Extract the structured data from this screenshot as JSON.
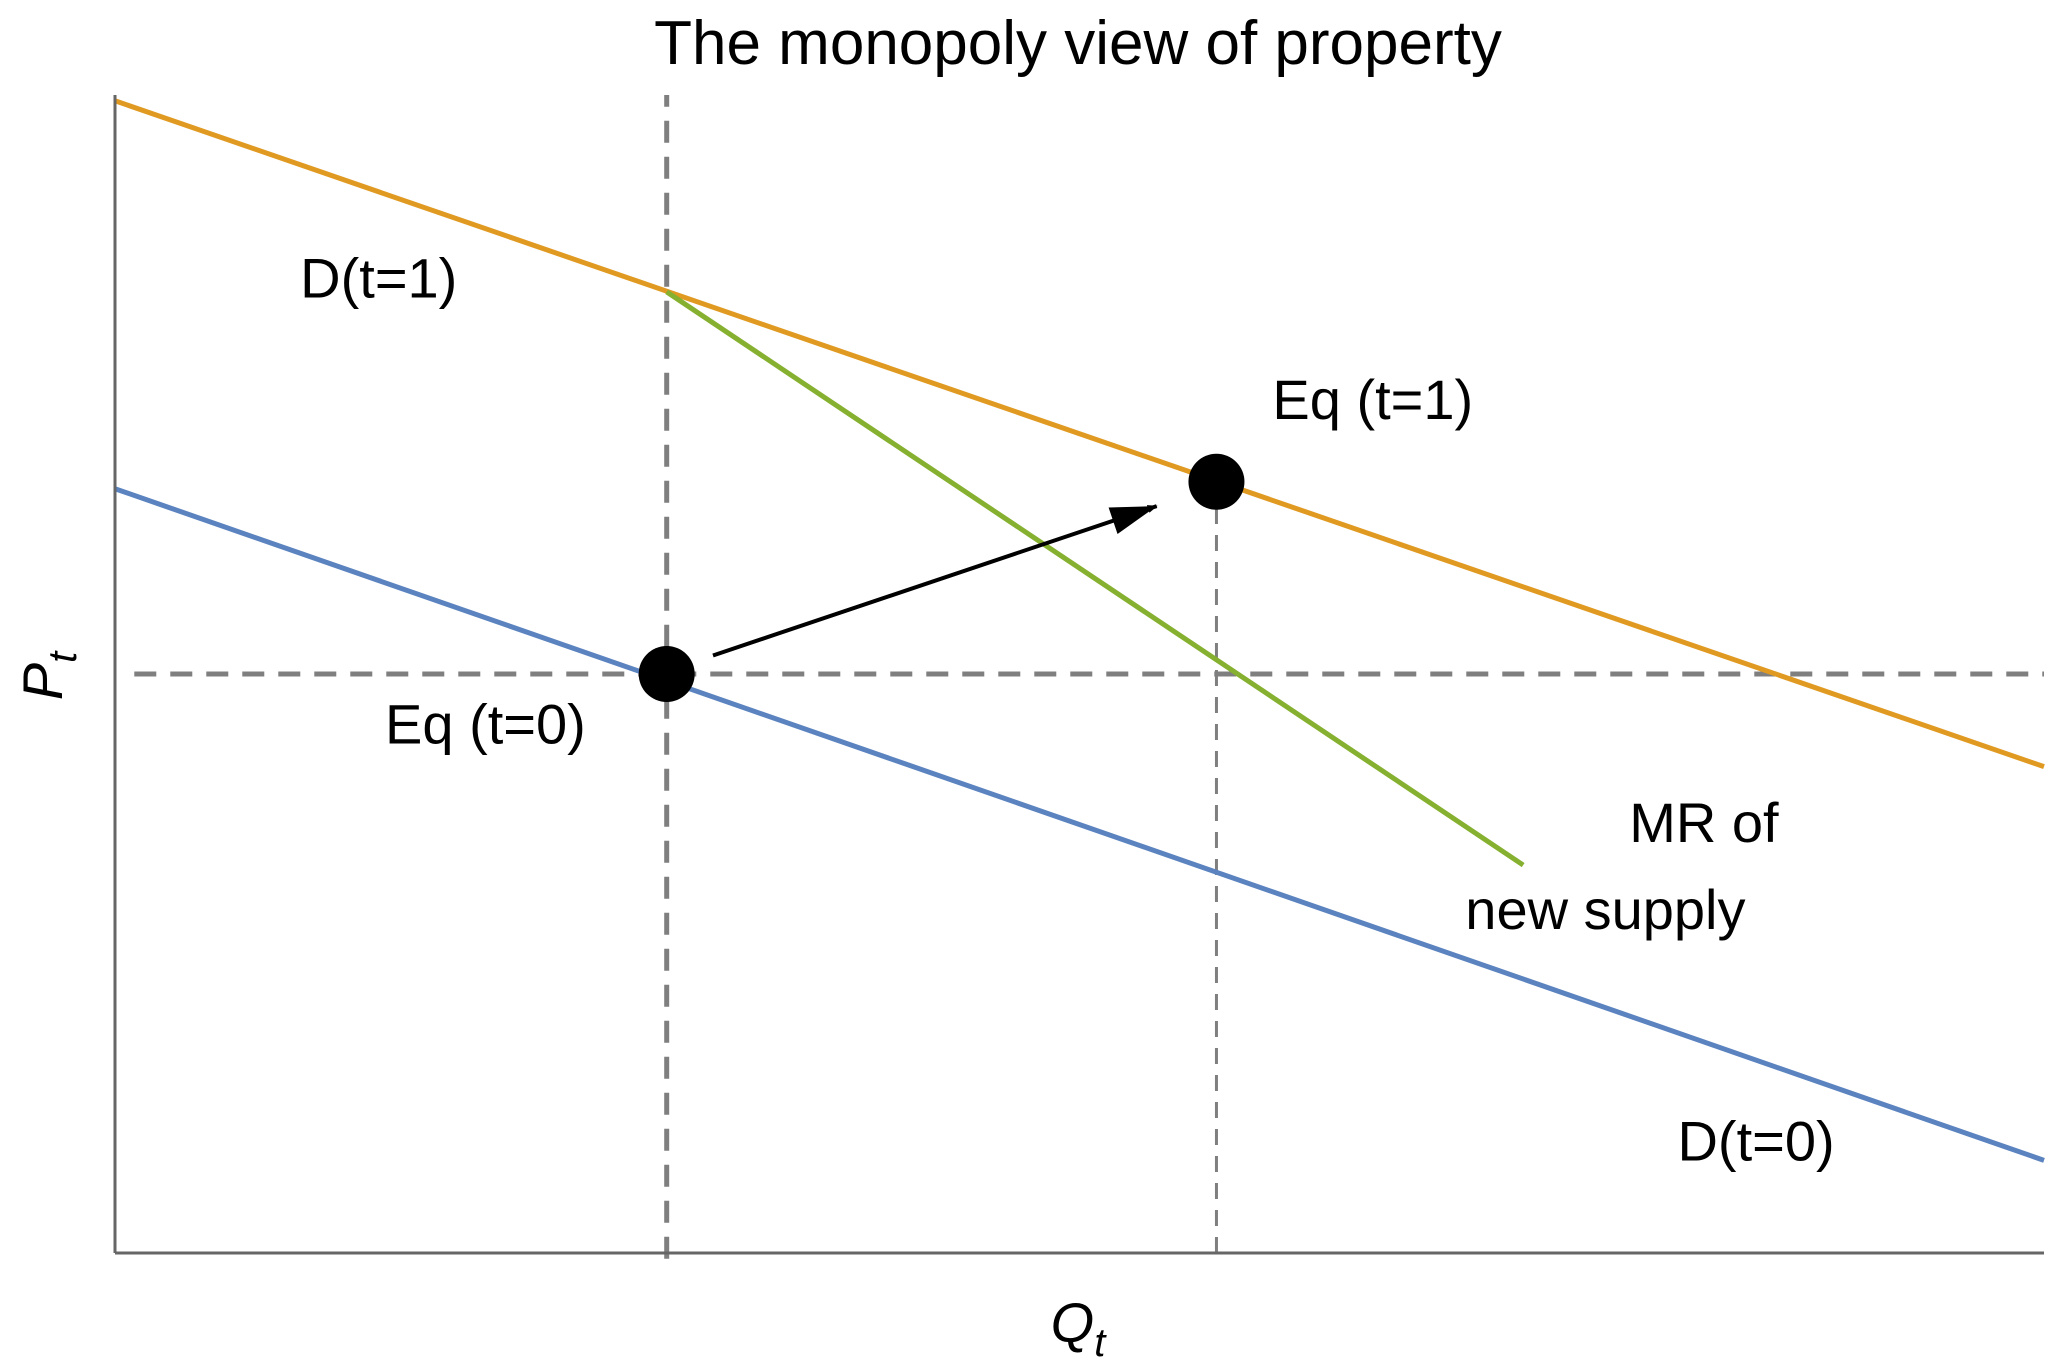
{
  "chart_data": {
    "type": "line",
    "title": "The monopoly view of property",
    "xlabel": {
      "main": "Q",
      "sub": "t"
    },
    "ylabel": {
      "main": "P",
      "sub": "t"
    },
    "xlim": [
      0,
      10
    ],
    "ylim": [
      0,
      10
    ],
    "ticks_shown": false,
    "grid": false,
    "series": [
      {
        "name": "D(t=0)",
        "color": "#5b83bf",
        "x": [
          0,
          10
        ],
        "y": [
          6.6,
          0.8
        ]
      },
      {
        "name": "D(t=1)",
        "color": "#e09a22",
        "x": [
          0,
          10
        ],
        "y": [
          9.95,
          4.2
        ]
      },
      {
        "name": "MR of new supply",
        "color": "#86b02f",
        "x": [
          2.86,
          7.3
        ],
        "y": [
          8.3,
          3.35
        ]
      }
    ],
    "reference_lines": [
      {
        "orientation": "vertical",
        "x": 2.86,
        "y_from": -0.05,
        "y_to": 10,
        "color": "#7f7f7f",
        "weight": "thick"
      },
      {
        "orientation": "horizontal",
        "y": 5.0,
        "x_from": 0.1,
        "x_to": 10,
        "color": "#7f7f7f",
        "weight": "thick"
      },
      {
        "orientation": "vertical",
        "x": 5.71,
        "y_from": 0,
        "y_to": 6.6,
        "color": "#7f7f7f",
        "weight": "thin"
      }
    ],
    "points": [
      {
        "name": "Eq (t=0)",
        "x": 2.86,
        "y": 5.0
      },
      {
        "name": "Eq (t=1)",
        "x": 5.71,
        "y": 6.66
      }
    ],
    "arrow": {
      "from": [
        3.1,
        5.16
      ],
      "to": [
        5.4,
        6.45
      ],
      "color": "#000000"
    },
    "annotations": [
      {
        "text": "D(t=1)",
        "x": 0.96,
        "y": 8.25
      },
      {
        "text": "Eq (t=1)",
        "x": 6.0,
        "y": 7.2
      },
      {
        "text": "Eq (t=0)",
        "x": 1.4,
        "y": 4.4
      },
      {
        "text": "MR of",
        "x": 7.85,
        "y": 3.55
      },
      {
        "text": "new supply",
        "x": 7.0,
        "y": 2.8
      },
      {
        "text": "D(t=0)",
        "x": 8.1,
        "y": 0.8
      }
    ]
  }
}
